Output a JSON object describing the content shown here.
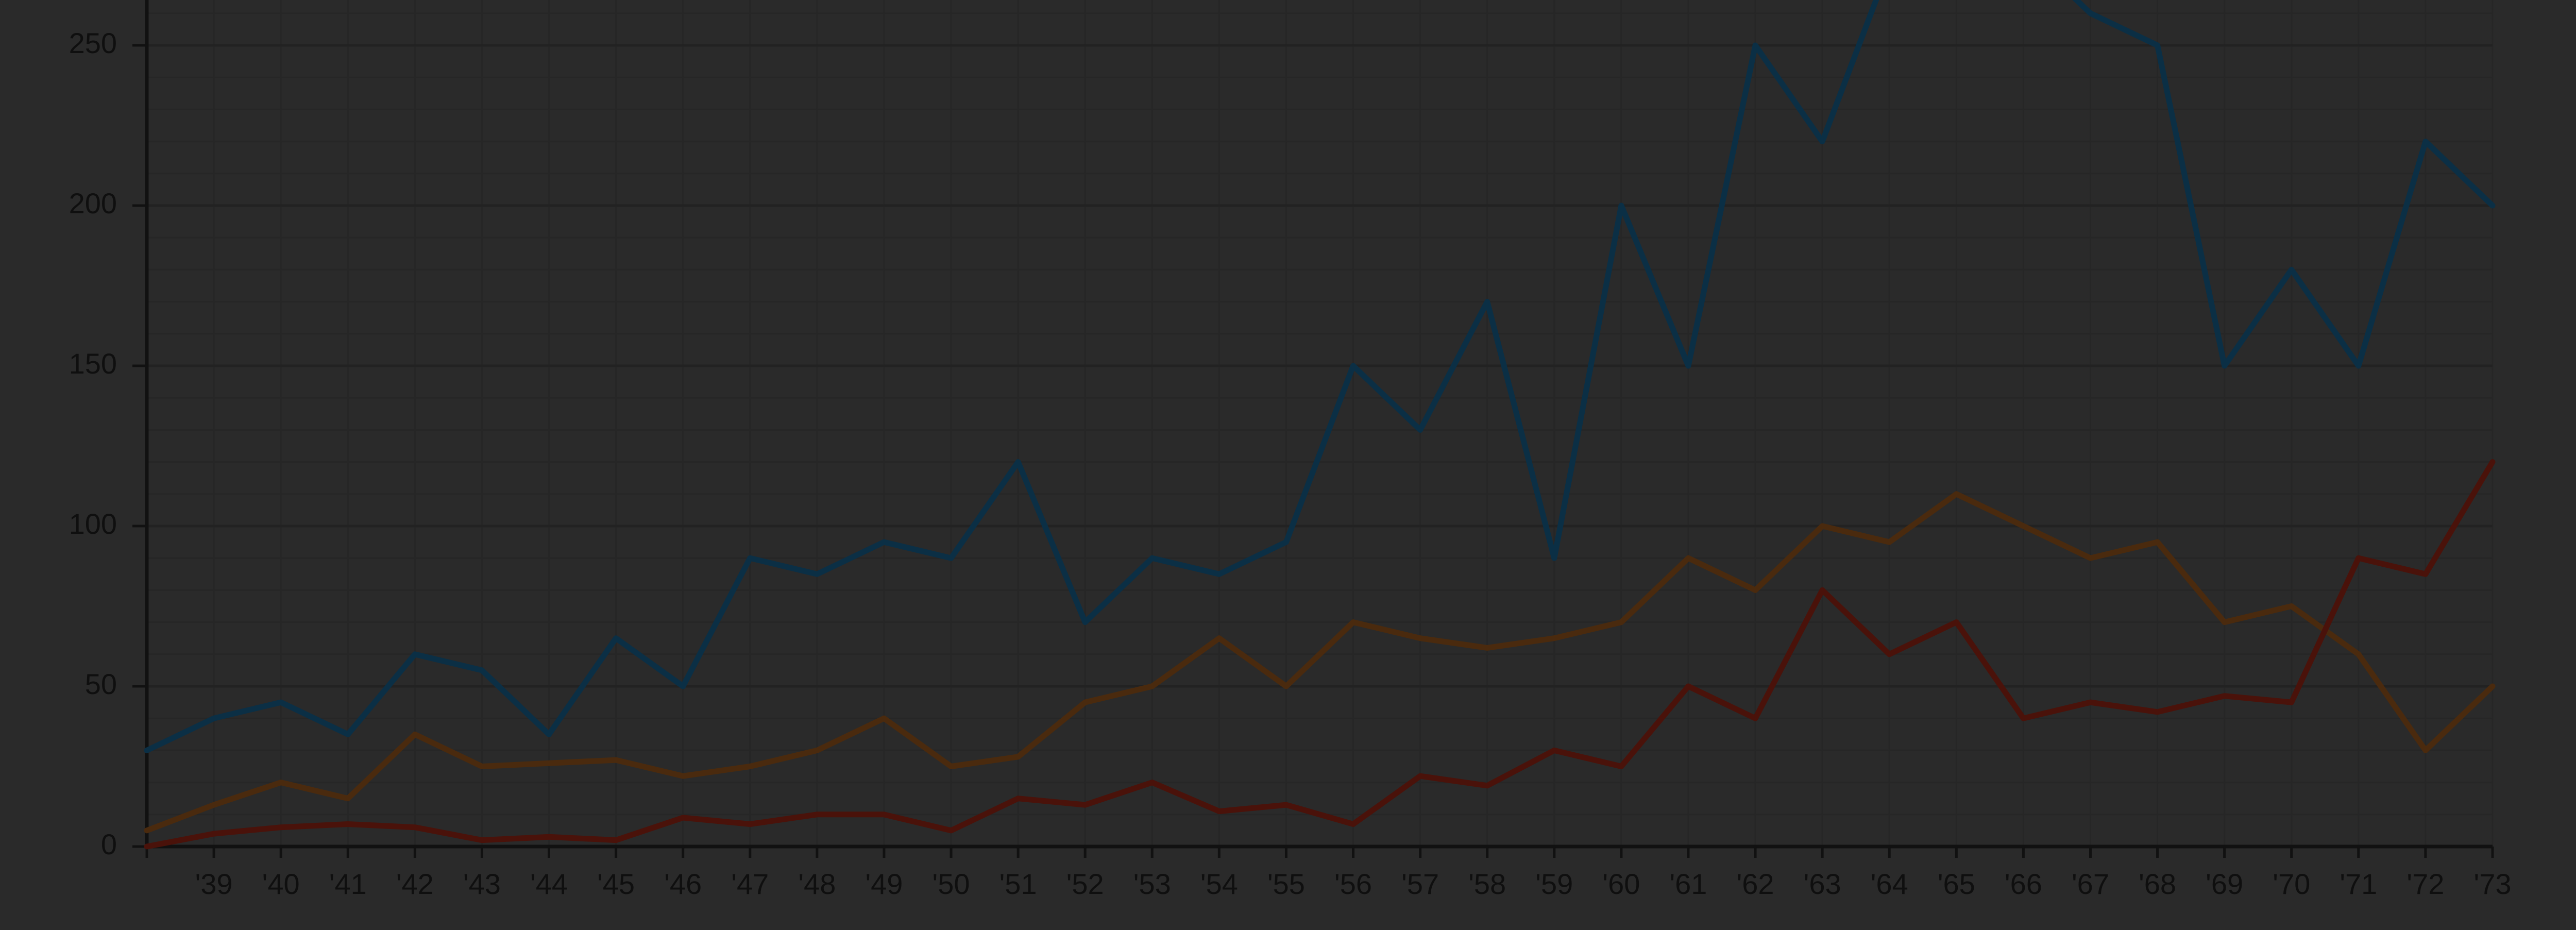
{
  "chart_data": {
    "type": "line",
    "title": "",
    "xlabel": "",
    "ylabel": "",
    "x": [
      1938,
      1939,
      1940,
      1941,
      1942,
      1943,
      1944,
      1945,
      1946,
      1947,
      1948,
      1949,
      1950,
      1951,
      1952,
      1953,
      1954,
      1955,
      1956,
      1957,
      1958,
      1959,
      1960,
      1961,
      1962,
      1963,
      1964,
      1965,
      1966,
      1967,
      1968,
      1969,
      1970,
      1971,
      1972,
      1973
    ],
    "x_tick_labels": [
      "'39",
      "'40",
      "'41",
      "'42",
      "'43",
      "'44",
      "'45",
      "'46",
      "'47",
      "'48",
      "'49",
      "'50",
      "'51",
      "'52",
      "'53",
      "'54",
      "'55",
      "'56",
      "'57",
      "'58",
      "'59",
      "'60",
      "'61",
      "'62",
      "'63",
      "'64",
      "'65",
      "'66",
      "'67",
      "'68",
      "'69",
      "'70",
      "'71",
      "'72",
      "'73"
    ],
    "y_ticks": [
      0,
      50,
      100,
      150,
      200,
      250
    ],
    "y_tick_labels": [
      "0",
      "50",
      "100",
      "150",
      "200",
      "250"
    ],
    "ylim": [
      0,
      262
    ],
    "grid": true,
    "legend": "none",
    "series": [
      {
        "color": "#0b2f45",
        "values": [
          30,
          40,
          45,
          35,
          60,
          55,
          35,
          65,
          50,
          90,
          85,
          95,
          90,
          120,
          70,
          90,
          85,
          95,
          150,
          130,
          170,
          90,
          200,
          150,
          250,
          220,
          275,
          285,
          280,
          260,
          250,
          150,
          180,
          150,
          220,
          200
        ]
      },
      {
        "color": "#4a2a0e",
        "values": [
          5,
          13,
          20,
          15,
          35,
          25,
          26,
          27,
          22,
          25,
          30,
          40,
          25,
          28,
          45,
          50,
          65,
          50,
          70,
          65,
          62,
          65,
          70,
          90,
          80,
          100,
          95,
          110,
          100,
          90,
          95,
          70,
          75,
          60,
          30,
          50
        ]
      },
      {
        "color": "#4a120a",
        "values": [
          0,
          4,
          6,
          7,
          6,
          2,
          3,
          2,
          9,
          7,
          10,
          10,
          5,
          15,
          13,
          20,
          11,
          13,
          7,
          22,
          19,
          30,
          25,
          50,
          40,
          80,
          60,
          70,
          40,
          45,
          42,
          47,
          45,
          90,
          85,
          120
        ]
      }
    ]
  }
}
